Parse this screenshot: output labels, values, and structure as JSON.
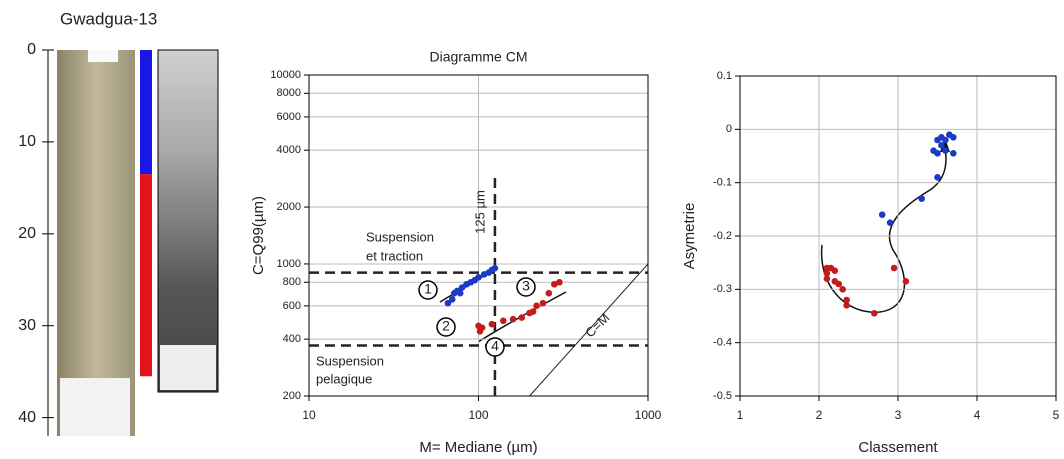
{
  "chart_data": [
    {
      "type": "core",
      "title": "Gwadgua-13",
      "ylim": [
        0,
        42
      ],
      "yticks": [
        0,
        10,
        20,
        30,
        40
      ],
      "intervals": [
        {
          "color": "#1717e6",
          "from": 0,
          "to": 13.5
        },
        {
          "color": "#e3121c",
          "from": 13.5,
          "to": 35.5
        }
      ]
    },
    {
      "type": "scatter",
      "title": "Diagramme CM",
      "xlabel": "M= Mediane (µm)",
      "ylabel": "C=Q99(µm)",
      "log_scale": true,
      "xlim": [
        10,
        1000
      ],
      "ylim": [
        200,
        10000
      ],
      "xticks": [
        10,
        100,
        1000
      ],
      "yticks": [
        200,
        400,
        600,
        800,
        1000,
        2000,
        4000,
        6000,
        8000,
        10000
      ],
      "grid": true,
      "vlines": [
        125
      ],
      "hlines": [
        900,
        370
      ],
      "diagonal": true,
      "annotations": [
        "Suspension",
        "et traction",
        "Suspension",
        "pelagique",
        "C=M",
        "125 µm",
        "1",
        "2",
        "3",
        "4"
      ],
      "series": [
        {
          "color": "#1b3bc4",
          "x": [
            66,
            70,
            72,
            75,
            78,
            80,
            85,
            90,
            95,
            100,
            108,
            115,
            120,
            125
          ],
          "values": [
            620,
            650,
            700,
            720,
            700,
            750,
            780,
            800,
            820,
            850,
            880,
            900,
            930,
            950
          ]
        },
        {
          "color": "#c41b1b",
          "x": [
            100,
            102,
            105,
            120,
            140,
            160,
            180,
            200,
            210,
            220,
            240,
            260,
            280,
            300
          ],
          "values": [
            470,
            440,
            460,
            480,
            500,
            510,
            520,
            550,
            560,
            600,
            620,
            700,
            780,
            800
          ]
        }
      ]
    },
    {
      "type": "scatter",
      "xlabel": "Classement",
      "ylabel": "Asymetrie",
      "xlim": [
        1,
        5
      ],
      "ylim": [
        -0.5,
        0.1
      ],
      "xticks": [
        1,
        2,
        3,
        4,
        5
      ],
      "yticks": [
        0.1,
        0,
        -0.1,
        -0.2,
        -0.3,
        -0.4,
        -0.5
      ],
      "grid": true,
      "series": [
        {
          "color": "#1b3bc4",
          "x": [
            3.5,
            3.55,
            3.6,
            3.65,
            3.7,
            3.45,
            3.5,
            3.6,
            3.7,
            3.55,
            3.5,
            3.3,
            2.8,
            2.9
          ],
          "values": [
            -0.02,
            -0.015,
            -0.02,
            -0.01,
            -0.015,
            -0.04,
            -0.045,
            -0.04,
            -0.045,
            -0.03,
            -0.09,
            -0.13,
            -0.16,
            -0.175
          ]
        },
        {
          "color": "#c41b1b",
          "x": [
            2.1,
            2.15,
            2.1,
            2.1,
            2.2,
            2.25,
            2.3,
            2.35,
            2.35,
            2.7,
            2.95,
            3.1,
            2.2
          ],
          "values": [
            -0.26,
            -0.26,
            -0.27,
            -0.28,
            -0.285,
            -0.29,
            -0.3,
            -0.32,
            -0.33,
            -0.345,
            -0.26,
            -0.285,
            -0.265
          ]
        }
      ]
    }
  ]
}
